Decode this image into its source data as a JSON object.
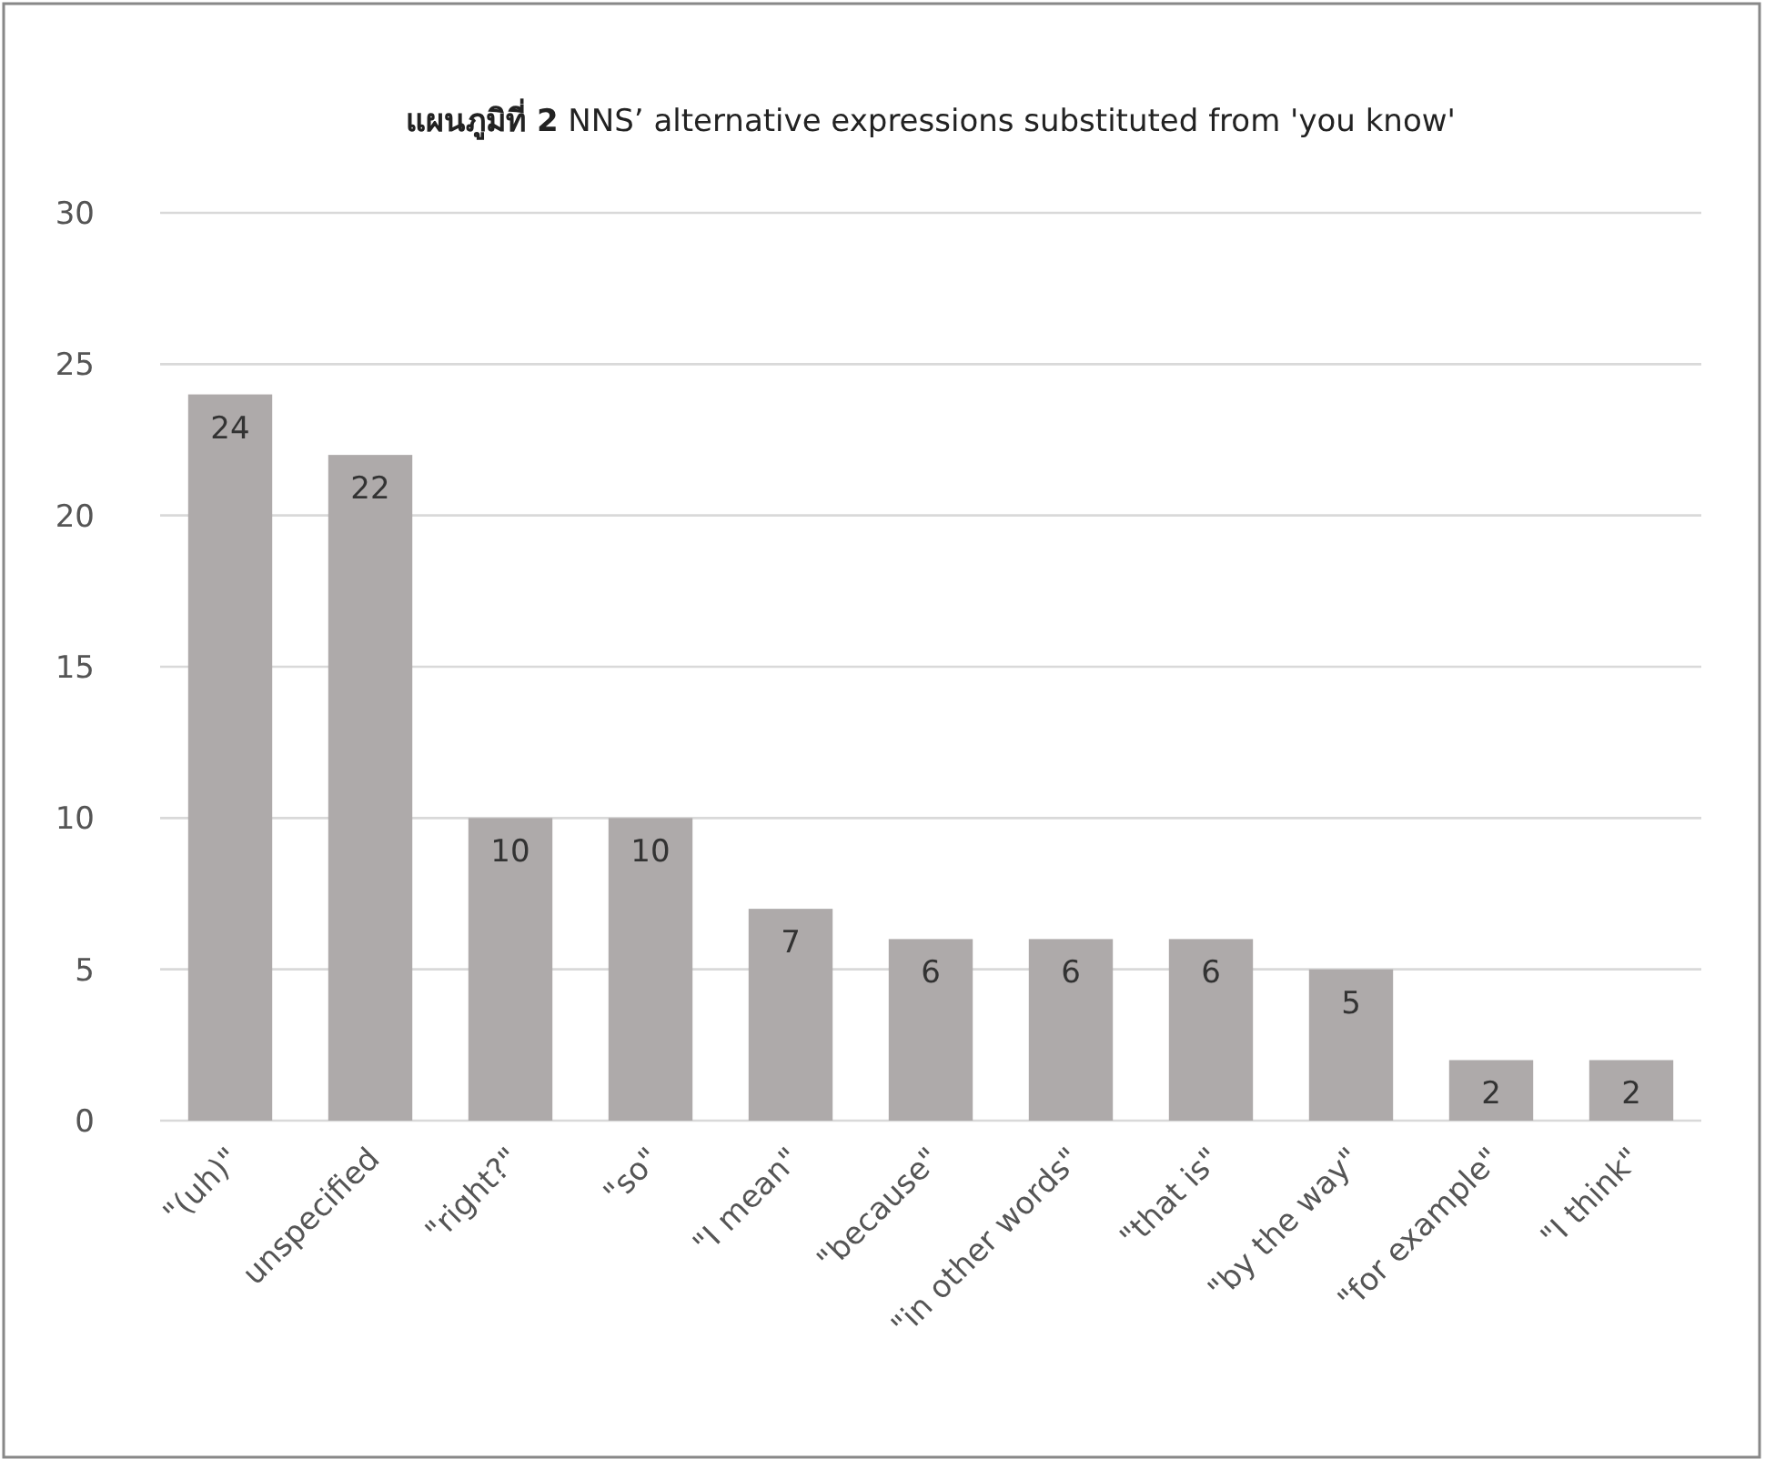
{
  "chart_data": {
    "type": "bar",
    "title": "**แผนภูมิที่ 2** NNS’ alternative expressions substituted from 'you know'",
    "categories": [
      "\"(uh)\"",
      "unspecified",
      "\"right?\"",
      "\"so\"",
      "\"I mean\"",
      "\"because\"",
      "\"in other words\"",
      "\"that is\"",
      "\"by the way\"",
      "\"for example\"",
      "\"I think\""
    ],
    "values": [
      24,
      22,
      10,
      10,
      7,
      6,
      6,
      6,
      5,
      2,
      2
    ],
    "color": "#aeaaaa",
    "ylim": [
      0,
      30
    ],
    "yticks": [
      0,
      5,
      10,
      15,
      20,
      25,
      30
    ],
    "grid": "y",
    "data_labels": true
  }
}
